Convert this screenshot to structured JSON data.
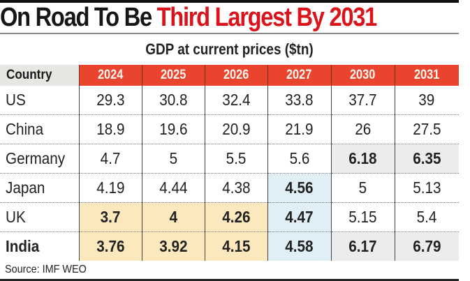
{
  "title": {
    "part1": "On Road To Be ",
    "part2": "Third Largest By 2031"
  },
  "subtitle": "GDP at current prices ($tn)",
  "source": "Source: IMF WEO",
  "colors": {
    "header_red": "#e8442e",
    "title_red": "#d9141c",
    "highlight_yellow": "#fbe8bd",
    "highlight_blue": "#e0eff5",
    "highlight_gray": "#ececea"
  },
  "chart_data": {
    "type": "table",
    "title": "On Road To Be Third Largest By 2031",
    "subtitle": "GDP at current prices ($tn)",
    "unit": "$tn",
    "columns": [
      "Country",
      "2024",
      "2025",
      "2026",
      "2027",
      "2030",
      "2031"
    ],
    "rows": [
      {
        "country": "US",
        "bold": false,
        "values": [
          "29.3",
          "30.8",
          "32.4",
          "33.8",
          "37.7",
          "39"
        ],
        "highlight": [
          "",
          "",
          "",
          "",
          "",
          ""
        ]
      },
      {
        "country": "China",
        "bold": false,
        "values": [
          "18.9",
          "19.6",
          "20.9",
          "21.9",
          "26",
          "27.5"
        ],
        "highlight": [
          "",
          "",
          "",
          "",
          "",
          ""
        ]
      },
      {
        "country": "Germany",
        "bold": false,
        "values": [
          "4.7",
          "5",
          "5.5",
          "5.6",
          "6.18",
          "6.35"
        ],
        "highlight": [
          "",
          "",
          "",
          "",
          "gray",
          "gray"
        ]
      },
      {
        "country": "Japan",
        "bold": false,
        "values": [
          "4.19",
          "4.44",
          "4.38",
          "4.56",
          "5",
          "5.13"
        ],
        "highlight": [
          "",
          "",
          "",
          "blue",
          "",
          ""
        ]
      },
      {
        "country": "UK",
        "bold": false,
        "values": [
          "3.7",
          "4",
          "4.26",
          "4.47",
          "5.15",
          "5.4"
        ],
        "highlight": [
          "yellow",
          "yellow",
          "yellow",
          "blue",
          "",
          ""
        ]
      },
      {
        "country": "India",
        "bold": true,
        "values": [
          "3.76",
          "3.92",
          "4.15",
          "4.58",
          "6.17",
          "6.79"
        ],
        "highlight": [
          "yellow",
          "yellow",
          "yellow",
          "blue",
          "gray",
          "gray"
        ]
      }
    ],
    "source": "IMF WEO"
  }
}
